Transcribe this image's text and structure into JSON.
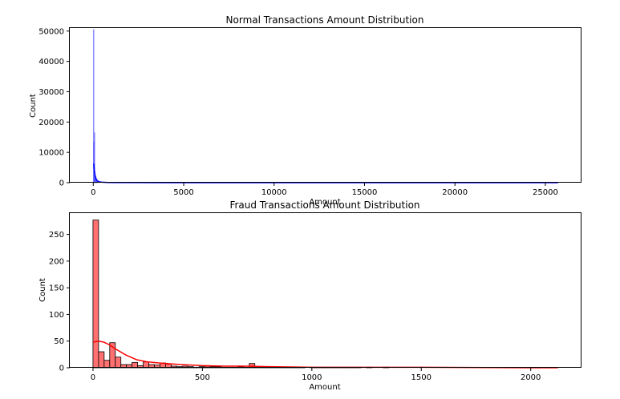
{
  "chart_data": [
    {
      "type": "bar",
      "title": "Normal Transactions Amount Distribution",
      "xlabel": "Amount",
      "ylabel": "Count",
      "xlim": [
        -1300,
        27000
      ],
      "ylim": [
        0,
        51000
      ],
      "xticks": [
        0,
        5000,
        10000,
        15000,
        20000,
        25000
      ],
      "xtick_labels": [
        "0",
        "5000",
        "10000",
        "15000",
        "20000",
        "25000"
      ],
      "yticks": [
        0,
        10000,
        20000,
        30000,
        40000,
        50000
      ],
      "ytick_labels": [
        "0",
        "10000",
        "20000",
        "30000",
        "40000",
        "50000"
      ],
      "grid": false,
      "colors": {
        "bar_fill": "#6f6fff",
        "bar_edge": "#3a3aff",
        "kde": "#0000ff"
      },
      "histogram": {
        "bin_width": 25,
        "x": [
          0,
          25,
          50,
          75,
          100,
          125,
          150,
          175,
          200,
          250,
          300,
          400,
          600,
          1000,
          2000,
          5000,
          10000,
          25000
        ],
        "values": [
          50500,
          13500,
          16500,
          3500,
          2600,
          2000,
          1600,
          1200,
          900,
          650,
          450,
          300,
          150,
          80,
          30,
          10,
          3,
          1
        ]
      },
      "kde": {
        "x": [
          0,
          30,
          60,
          100,
          150,
          200,
          300,
          500,
          800,
          1200,
          2000,
          4000,
          8000,
          15000,
          25700
        ],
        "y": [
          6200,
          6000,
          4000,
          2200,
          1200,
          700,
          350,
          150,
          70,
          35,
          20,
          10,
          5,
          2,
          0
        ]
      }
    },
    {
      "type": "bar",
      "title": "Fraud Transactions Amount Distribution",
      "xlabel": "Amount",
      "ylabel": "Count",
      "xlim": [
        -106,
        2232
      ],
      "ylim": [
        0,
        290
      ],
      "xticks": [
        0,
        500,
        1000,
        1500,
        2000
      ],
      "xtick_labels": [
        "0",
        "500",
        "1000",
        "1500",
        "2000"
      ],
      "yticks": [
        0,
        50,
        100,
        150,
        200,
        250
      ],
      "ytick_labels": [
        "0",
        "50",
        "100",
        "150",
        "200",
        "250"
      ],
      "grid": false,
      "colors": {
        "bar_fill": "#ff7070",
        "bar_edge": "#000000",
        "kde": "#ff0000"
      },
      "histogram": {
        "bin_width": 25.5,
        "x": [
          0,
          25.5,
          51,
          76.5,
          102,
          127.5,
          153,
          178.5,
          204,
          229.5,
          255,
          280.5,
          306,
          331.5,
          357,
          382.5,
          408,
          433.5,
          459,
          484.5,
          510,
          535.5,
          561,
          586.5,
          612,
          637.5,
          663,
          688.5,
          714,
          739.5,
          765,
          790.5,
          816,
          841.5,
          867,
          892.5,
          918,
          943.5,
          969,
          994.5,
          1020,
          1045.5,
          1071,
          1096.5,
          1122,
          1147.5,
          1173,
          1198.5,
          1224,
          1249.5,
          1275,
          1300.5,
          1326,
          1351.5,
          1377,
          1402.5,
          1428,
          1453.5,
          1479,
          1504.5,
          1530,
          1555.5,
          1581,
          1606.5,
          1632,
          1657.5,
          1683,
          1708.5,
          1734,
          1759.5,
          1785,
          1810.5,
          1836,
          1861.5,
          1887,
          1912.5,
          1938,
          1963.5,
          1989,
          2014.5,
          2040,
          2065.5,
          2091
        ],
        "values": [
          277,
          30,
          14,
          47,
          20,
          6,
          6,
          10,
          4,
          11,
          6,
          5,
          9,
          7,
          3,
          2,
          3,
          2,
          1,
          2,
          3,
          2,
          2,
          1,
          1,
          1,
          2,
          1,
          8,
          1,
          1,
          1,
          1,
          1,
          1,
          1,
          1,
          1,
          0,
          1,
          1,
          1,
          1,
          1,
          1,
          1,
          1,
          1,
          0,
          1,
          0,
          0,
          1,
          0,
          0,
          0,
          0,
          0,
          0,
          0,
          0,
          0,
          0,
          0,
          0,
          0,
          0,
          0,
          0,
          0,
          0,
          0,
          0,
          0,
          0,
          0,
          0,
          0,
          0,
          0,
          0,
          0,
          0
        ]
      },
      "kde": {
        "x": [
          0,
          25,
          50,
          75,
          100,
          150,
          200,
          250,
          300,
          400,
          500,
          600,
          700,
          800,
          1000,
          1200,
          1400,
          1500,
          1700,
          2000,
          2125
        ],
        "y": [
          48,
          50,
          48,
          43,
          36,
          24,
          15,
          11,
          9,
          6,
          4,
          3,
          3,
          2,
          1,
          1,
          1,
          1,
          0.5,
          0,
          0
        ]
      }
    }
  ]
}
